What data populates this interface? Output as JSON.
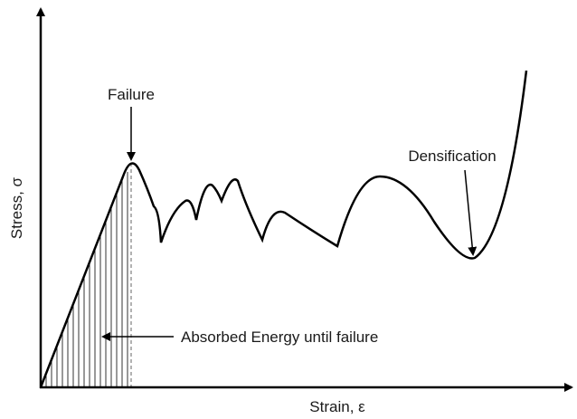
{
  "axes": {
    "y_label": "Stress, σ",
    "x_label": "Strain, ε"
  },
  "annotations": {
    "failure": "Failure",
    "densification": "Densification",
    "absorbed_energy": "Absorbed Energy until failure"
  }
}
